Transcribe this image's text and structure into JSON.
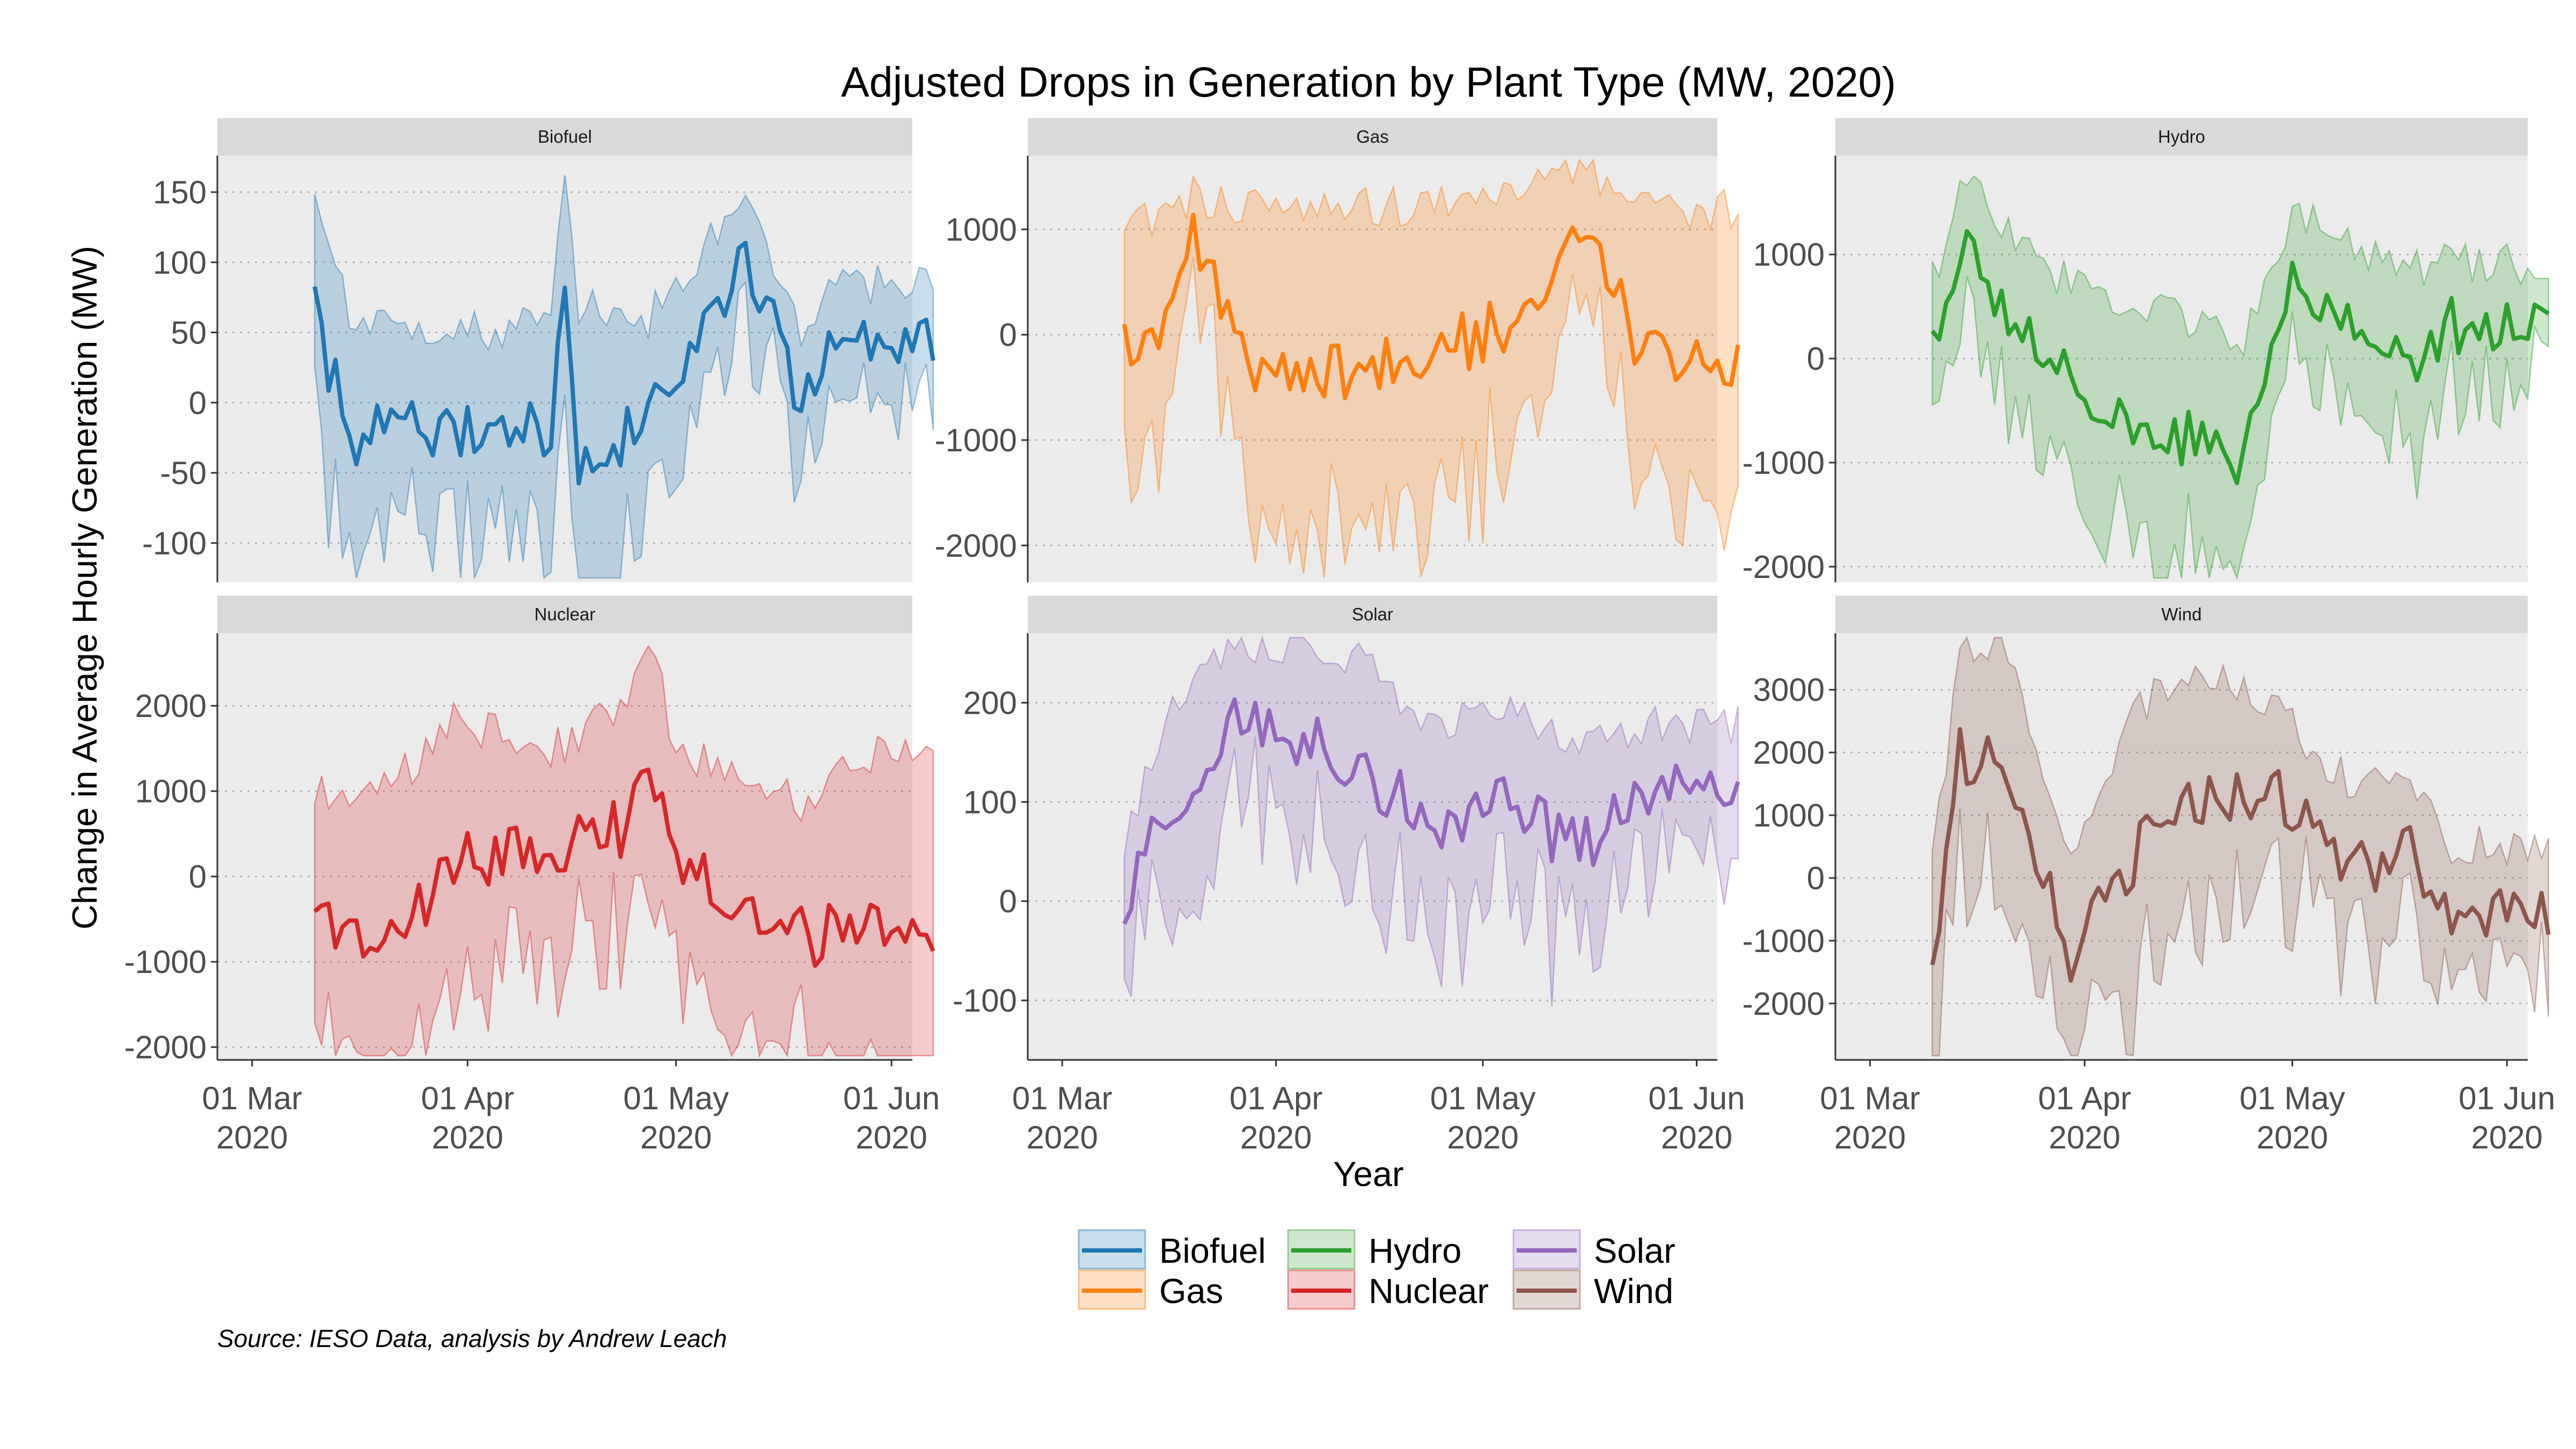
{
  "chart_data": {
    "type": "line",
    "title": "Adjusted Drops in Generation by Plant Type (MW, 2020)",
    "xlabel": "Year",
    "ylabel": "Change in Average Hourly Generation (MW)",
    "caption": "Source: IESO Data, analysis by Andrew Leach",
    "x_range": [
      "2020-02-25",
      "2020-06-04"
    ],
    "x_ticks": [
      {
        "date": "2020-03-01",
        "line1": "01 Mar",
        "line2": "2020"
      },
      {
        "date": "2020-04-01",
        "line1": "01 Apr",
        "line2": "2020"
      },
      {
        "date": "2020-05-01",
        "line1": "01 May",
        "line2": "2020"
      },
      {
        "date": "2020-06-01",
        "line1": "01 Jun",
        "line2": "2020"
      }
    ],
    "grid": "horizontal-major-dotted",
    "legend_position": "bottom",
    "series": [
      {
        "name": "Biofuel",
        "color": "#1f77b4",
        "ylim": [
          -128,
          176
        ],
        "yticks": [
          -100,
          -50,
          0,
          50,
          100,
          150
        ],
        "anchors": [
          [
            0,
            65,
            150
          ],
          [
            5,
            -25,
            60
          ],
          [
            25,
            -15,
            50
          ],
          [
            34,
            -25,
            55
          ],
          [
            36,
            90,
            170
          ],
          [
            38,
            -50,
            70
          ],
          [
            48,
            -10,
            60
          ],
          [
            62,
            105,
            150
          ],
          [
            70,
            0,
            55
          ],
          [
            75,
            40,
            85
          ]
        ]
      },
      {
        "name": "Gas",
        "color": "#ff7f0e",
        "ylim": [
          -2350,
          1700
        ],
        "yticks": [
          -2000,
          -1000,
          0,
          1000
        ],
        "anchors": [
          [
            0,
            -50,
            1000
          ],
          [
            4,
            -150,
            1100
          ],
          [
            10,
            900,
            1300
          ],
          [
            18,
            -300,
            1250
          ],
          [
            28,
            -400,
            1150
          ],
          [
            35,
            -300,
            1200
          ],
          [
            45,
            -200,
            1200
          ],
          [
            55,
            100,
            1300
          ],
          [
            64,
            850,
            1550
          ],
          [
            70,
            600,
            1500
          ],
          [
            75,
            -200,
            1200
          ]
        ]
      },
      {
        "name": "Hydro",
        "color": "#2ca02c",
        "ylim": [
          -2150,
          1950
        ],
        "yticks": [
          -2000,
          -1000,
          0,
          1000
        ],
        "anchors": [
          [
            0,
            250,
            750
          ],
          [
            5,
            1100,
            1700
          ],
          [
            15,
            100,
            900
          ],
          [
            25,
            -500,
            600
          ],
          [
            35,
            -700,
            400
          ],
          [
            45,
            -1000,
            200
          ],
          [
            52,
            800,
            1400
          ],
          [
            60,
            400,
            1100
          ],
          [
            70,
            0,
            900
          ],
          [
            75,
            300,
            900
          ]
        ]
      },
      {
        "name": "Nuclear",
        "color": "#d62728",
        "ylim": [
          -2150,
          2850
        ],
        "yticks": [
          -2000,
          -1000,
          0,
          1000,
          2000
        ],
        "anchors": [
          [
            0,
            -400,
            1000
          ],
          [
            10,
            -900,
            1000
          ],
          [
            20,
            200,
            1800
          ],
          [
            35,
            300,
            1500
          ],
          [
            45,
            600,
            2000
          ],
          [
            48,
            1300,
            2800
          ],
          [
            52,
            300,
            1500
          ],
          [
            65,
            -500,
            1100
          ],
          [
            72,
            -700,
            700
          ],
          [
            75,
            -600,
            1400
          ]
        ]
      },
      {
        "name": "Solar",
        "color": "#9467bd",
        "ylim": [
          -160,
          270
        ],
        "yticks": [
          -100,
          0,
          100,
          200
        ],
        "anchors": [
          [
            0,
            -10,
            60
          ],
          [
            5,
            80,
            170
          ],
          [
            16,
            185,
            260
          ],
          [
            30,
            150,
            260
          ],
          [
            45,
            80,
            180
          ],
          [
            55,
            100,
            200
          ],
          [
            66,
            50,
            160
          ],
          [
            75,
            110,
            180
          ]
        ]
      },
      {
        "name": "Wind",
        "color": "#8c564b",
        "ylim": [
          -2900,
          3900
        ],
        "yticks": [
          -2000,
          -1000,
          0,
          1000,
          2000,
          3000
        ],
        "anchors": [
          [
            0,
            -1200,
            200
          ],
          [
            4,
            1900,
            3700
          ],
          [
            10,
            2200,
            3800
          ],
          [
            20,
            -1200,
            600
          ],
          [
            30,
            500,
            2800
          ],
          [
            40,
            1300,
            3200
          ],
          [
            50,
            1400,
            2700
          ],
          [
            60,
            0,
            1500
          ],
          [
            68,
            500,
            1600
          ],
          [
            75,
            -500,
            500
          ]
        ]
      }
    ]
  }
}
